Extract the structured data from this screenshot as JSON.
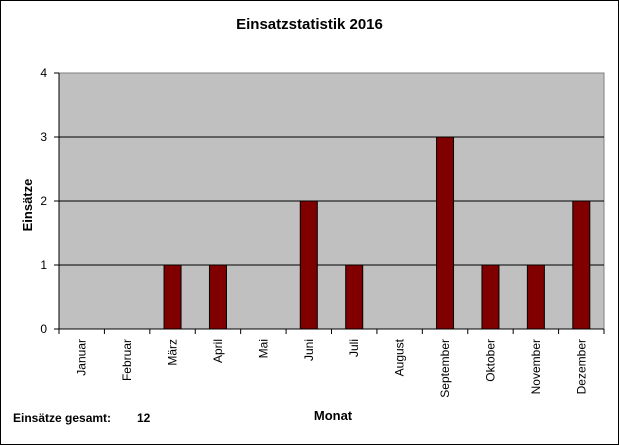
{
  "chart_data": {
    "type": "bar",
    "title": "Einsatzstatistik 2016",
    "xlabel": "Monat",
    "ylabel": "Einsätze",
    "categories": [
      "Januar",
      "Februar",
      "März",
      "April",
      "Mai",
      "Juni",
      "Juli",
      "August",
      "September",
      "Oktober",
      "November",
      "Dezember"
    ],
    "values": [
      0,
      0,
      1,
      1,
      0,
      2,
      1,
      0,
      3,
      1,
      1,
      2
    ],
    "ylim": [
      0,
      4
    ],
    "yticks": [
      "0",
      "1",
      "2",
      "3",
      "4"
    ],
    "grid": true,
    "colors": {
      "bar": "#800000",
      "plot_bg": "#c0c0c0",
      "gridline": "#000000"
    }
  },
  "summary": {
    "label": "Einsätze gesamt:",
    "value": "12"
  }
}
